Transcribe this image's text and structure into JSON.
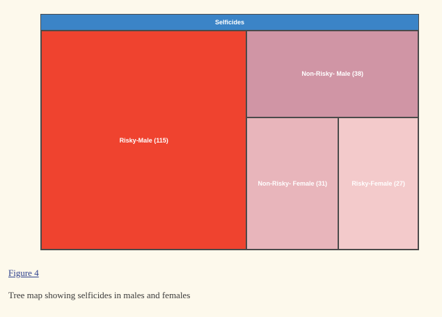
{
  "chart_data": {
    "type": "treemap",
    "root": {
      "label": "Selficides",
      "color": "#3b84c7"
    },
    "nodes": [
      {
        "id": "risky-male",
        "label": "Risky-Male (115)",
        "value": 115,
        "color": "#ef432f"
      },
      {
        "id": "non-risky-male",
        "label": "Non-Risky- Male (38)",
        "value": 38,
        "color": "#d095a5"
      },
      {
        "id": "non-risky-female",
        "label": "Non-Risky- Female (31)",
        "value": 31,
        "color": "#e8b5bb"
      },
      {
        "id": "risky-female",
        "label": "Risky-Female (27)",
        "value": 27,
        "color": "#f3cacb"
      }
    ]
  },
  "figure": {
    "link_text": "Figure 4",
    "caption": "Tree map showing selficides in males and females"
  }
}
